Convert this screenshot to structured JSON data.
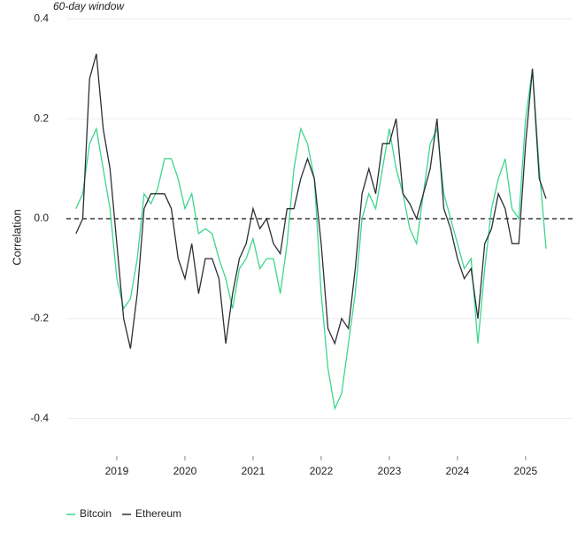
{
  "chart_data": {
    "type": "line",
    "subtitle": "60-day window",
    "y_label": "Correlation",
    "x": [
      2018.4,
      2018.5,
      2018.6,
      2018.7,
      2018.8,
      2018.9,
      2019.0,
      2019.1,
      2019.2,
      2019.3,
      2019.4,
      2019.5,
      2019.6,
      2019.7,
      2019.8,
      2019.9,
      2020.0,
      2020.1,
      2020.2,
      2020.3,
      2020.4,
      2020.5,
      2020.6,
      2020.7,
      2020.8,
      2020.9,
      2021.0,
      2021.1,
      2021.2,
      2021.3,
      2021.4,
      2021.5,
      2021.6,
      2021.7,
      2021.8,
      2021.9,
      2022.0,
      2022.1,
      2022.2,
      2022.3,
      2022.4,
      2022.5,
      2022.6,
      2022.7,
      2022.8,
      2022.9,
      2023.0,
      2023.1,
      2023.2,
      2023.3,
      2023.4,
      2023.5,
      2023.6,
      2023.7,
      2023.8,
      2023.9,
      2024.0,
      2024.1,
      2024.2,
      2024.3,
      2024.4,
      2024.5,
      2024.6,
      2024.7,
      2024.8,
      2024.9,
      2025.0,
      2025.1,
      2025.2,
      2025.3
    ],
    "series": [
      {
        "name": "Bitcoin",
        "color": "#3dd68c",
        "values": [
          0.02,
          0.05,
          0.15,
          0.18,
          0.1,
          0.02,
          -0.12,
          -0.18,
          -0.16,
          -0.08,
          0.05,
          0.03,
          0.06,
          0.12,
          0.12,
          0.08,
          0.02,
          0.05,
          -0.03,
          -0.02,
          -0.03,
          -0.08,
          -0.12,
          -0.18,
          -0.1,
          -0.08,
          -0.04,
          -0.1,
          -0.08,
          -0.08,
          -0.15,
          -0.05,
          0.1,
          0.18,
          0.15,
          0.08,
          -0.15,
          -0.3,
          -0.38,
          -0.35,
          -0.25,
          -0.15,
          0.0,
          0.05,
          0.02,
          0.1,
          0.18,
          0.1,
          0.05,
          -0.02,
          -0.05,
          0.05,
          0.15,
          0.18,
          0.05,
          0.0,
          -0.05,
          -0.1,
          -0.08,
          -0.25,
          -0.1,
          0.02,
          0.08,
          0.12,
          0.02,
          0.0,
          0.2,
          0.3,
          0.1,
          -0.06
        ]
      },
      {
        "name": "Ethereum",
        "color": "#2b2f36",
        "values": [
          -0.03,
          0.0,
          0.28,
          0.33,
          0.18,
          0.1,
          -0.05,
          -0.2,
          -0.26,
          -0.15,
          0.02,
          0.05,
          0.05,
          0.05,
          0.02,
          -0.08,
          -0.12,
          -0.05,
          -0.15,
          -0.08,
          -0.08,
          -0.12,
          -0.25,
          -0.15,
          -0.08,
          -0.05,
          0.02,
          -0.02,
          0.0,
          -0.05,
          -0.07,
          0.02,
          0.02,
          0.08,
          0.12,
          0.08,
          -0.05,
          -0.22,
          -0.25,
          -0.2,
          -0.22,
          -0.1,
          0.05,
          0.1,
          0.05,
          0.15,
          0.15,
          0.2,
          0.05,
          0.03,
          0.0,
          0.05,
          0.1,
          0.2,
          0.02,
          -0.02,
          -0.08,
          -0.12,
          -0.1,
          -0.2,
          -0.05,
          -0.02,
          0.05,
          0.02,
          -0.05,
          -0.05,
          0.15,
          0.3,
          0.08,
          0.04
        ]
      }
    ],
    "xlim": [
      2018.26,
      2025.69
    ],
    "xticks": [
      2019,
      2020,
      2021,
      2022,
      2023,
      2024,
      2025
    ],
    "ylim": [
      -0.475,
      0.42
    ],
    "yticks": [
      -0.4,
      -0.2,
      {
        "value": 0,
        "label": "0.0"
      },
      0.2,
      0.4
    ],
    "grid": true,
    "zero_line": true,
    "legend": "bottom-left"
  }
}
